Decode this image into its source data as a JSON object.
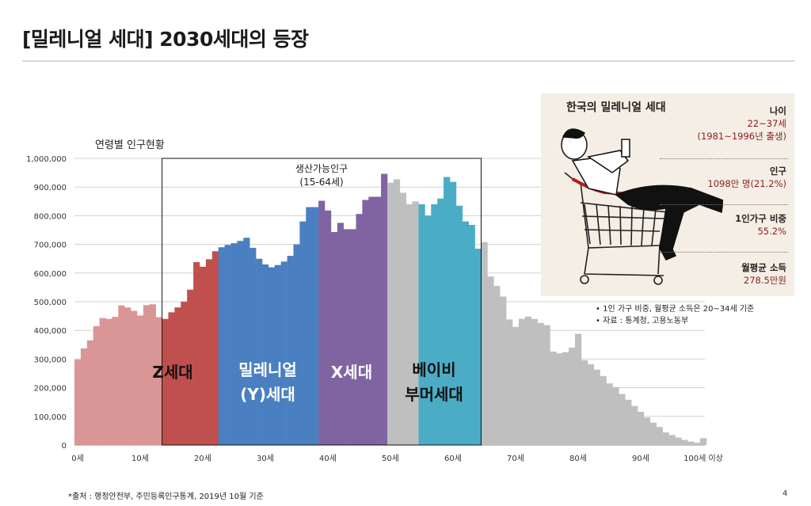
{
  "title": "[밀레니얼 세대] 2030세대의 등장",
  "chart_data": {
    "type": "bar",
    "title": "연령별 인구현황",
    "ylim": [
      0,
      1000000
    ],
    "yticks": [
      "0",
      "100,000",
      "200,000",
      "300,000",
      "400,000",
      "500,000",
      "600,000",
      "700,000",
      "800,000",
      "900,000",
      "1,000,000"
    ],
    "xticks": [
      "0세",
      "10세",
      "20세",
      "30세",
      "40세",
      "50세",
      "60세",
      "70세",
      "80세",
      "90세",
      "100세 이상"
    ],
    "categories": [
      "0",
      "1",
      "2",
      "3",
      "4",
      "5",
      "6",
      "7",
      "8",
      "9",
      "10",
      "11",
      "12",
      "13",
      "14",
      "15",
      "16",
      "17",
      "18",
      "19",
      "20",
      "21",
      "22",
      "23",
      "24",
      "25",
      "26",
      "27",
      "28",
      "29",
      "30",
      "31",
      "32",
      "33",
      "34",
      "35",
      "36",
      "37",
      "38",
      "39",
      "40",
      "41",
      "42",
      "43",
      "44",
      "45",
      "46",
      "47",
      "48",
      "49",
      "50",
      "51",
      "52",
      "53",
      "54",
      "55",
      "56",
      "57",
      "58",
      "59",
      "60",
      "61",
      "62",
      "63",
      "64",
      "65",
      "66",
      "67",
      "68",
      "69",
      "70",
      "71",
      "72",
      "73",
      "74",
      "75",
      "76",
      "77",
      "78",
      "79",
      "80",
      "81",
      "82",
      "83",
      "84",
      "85",
      "86",
      "87",
      "88",
      "89",
      "90",
      "91",
      "92",
      "93",
      "94",
      "95",
      "96",
      "97",
      "98",
      "99",
      "100세 이상"
    ],
    "values": [
      298000,
      337000,
      365000,
      415000,
      443000,
      440000,
      447000,
      487000,
      480000,
      468000,
      452000,
      488000,
      491000,
      446000,
      440000,
      463000,
      480000,
      500000,
      542000,
      638000,
      622000,
      648000,
      676000,
      690000,
      698000,
      704000,
      712000,
      723000,
      688000,
      650000,
      630000,
      620000,
      628000,
      640000,
      660000,
      700000,
      780000,
      830000,
      830000,
      852000,
      818000,
      743000,
      775000,
      753000,
      753000,
      806000,
      855000,
      866000,
      866000,
      946000,
      915000,
      927000,
      880000,
      840000,
      850000,
      840000,
      800000,
      840000,
      860000,
      935000,
      918000,
      835000,
      780000,
      768000,
      685000,
      708000,
      588000,
      555000,
      518000,
      438000,
      412000,
      440000,
      448000,
      440000,
      426000,
      418000,
      326000,
      320000,
      324000,
      340000,
      388000,
      296000,
      282000,
      263000,
      241000,
      215000,
      202000,
      178000,
      158000,
      136000,
      116000,
      96000,
      78000,
      63000,
      44000,
      35000,
      26000,
      18000,
      12000,
      8000,
      24000
    ],
    "segments": [
      {
        "name": "pre",
        "from": 0,
        "to": 13,
        "color": "#da9696"
      },
      {
        "name": "Z세대",
        "from": 14,
        "to": 22,
        "color": "#c0504d"
      },
      {
        "name": "밀레니얼 (Y)세대",
        "from": 23,
        "to": 38,
        "color": "#4a7fc1"
      },
      {
        "name": "X세대",
        "from": 39,
        "to": 49,
        "color": "#8064a2"
      },
      {
        "name": "gap",
        "from": 50,
        "to": 54,
        "color": "#bfbfbf"
      },
      {
        "name": "베이비 부머세대",
        "from": 55,
        "to": 64,
        "color": "#4bacc6"
      },
      {
        "name": "post",
        "from": 65,
        "to": 100,
        "color": "#bfbfbf"
      }
    ],
    "box_label": [
      "생산가능인구",
      "(15-64세)"
    ],
    "gen_labels": {
      "z": "Z세대",
      "y": [
        "밀레니얼",
        "(Y)세대"
      ],
      "x": "X세대",
      "boomer": [
        "베이비",
        "부머세대"
      ]
    }
  },
  "infobox": {
    "title": "한국의 밀레니얼 세대",
    "stats": [
      {
        "label": "나이",
        "values": [
          "22~37세",
          "(1981~1996년 출생)"
        ]
      },
      {
        "label": "인구",
        "values": [
          "1098만 명(21.2%)"
        ]
      },
      {
        "label": "1인가구 비중",
        "values": [
          "55.2%"
        ]
      },
      {
        "label": "월평균 소득",
        "values": [
          "278.5만원"
        ]
      }
    ]
  },
  "notes": [
    "•  1인 가구 비중, 월평균 소득은 20~34세 기준",
    "•  자료 : 통계청, 고용노동부"
  ],
  "source": "*출처 : 행정안전부, 주민등록인구통계, 2019년 10월 기준",
  "page_number": "4"
}
